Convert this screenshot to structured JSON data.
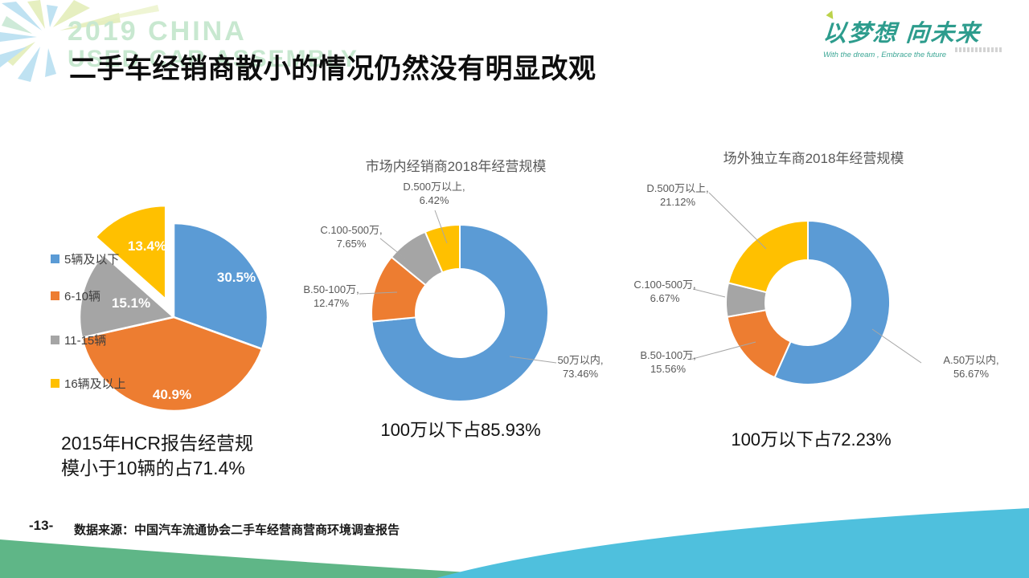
{
  "slide": {
    "title": "二手车经销商散小的情况仍然没有明显改观",
    "note_line1": "2015年HCR报告经营规",
    "note_line2": "模小于10辆的占71.4%",
    "page_number": "-13-",
    "source": "数据来源：中国汽车流通协会二手车经营商营商环境调查报告"
  },
  "branding": {
    "watermark_line1": "2019 CHINA",
    "watermark_line2": "USED CAR ASSEMBLY",
    "slogan_cn": "以梦想  向未来",
    "slogan_en": "With the dream , Embrace the future"
  },
  "colors": {
    "series_blue": "#5B9BD5",
    "series_orange": "#ED7D31",
    "series_gray": "#A5A5A5",
    "series_yellow": "#FFC000",
    "wave_green": "#5FB687",
    "wave_blue": "#4FC0DD",
    "logo_teal": "#2D9C8D",
    "watermark_mint": "#C8E8D0",
    "label_gray": "#595959"
  },
  "chart_data": [
    {
      "type": "pie",
      "title": "",
      "legend_position": "left",
      "categories": [
        "5辆及以下",
        "6-10辆",
        "11-15辆",
        "16辆及以上"
      ],
      "values": [
        30.5,
        40.9,
        15.1,
        13.4
      ],
      "labels": [
        "30.5%",
        "40.9%",
        "15.1%",
        "13.4%"
      ],
      "colors": [
        "#5B9BD5",
        "#ED7D31",
        "#A5A5A5",
        "#FFC000"
      ],
      "exploded_index": 3,
      "note": "2015年HCR报告经营规模小于10辆的占71.4%"
    },
    {
      "type": "pie",
      "subtype": "donut",
      "title": "市场内经销商2018年经营规模",
      "categories": [
        "50万以内",
        "B.50-100万",
        "C.100-500万",
        "D.500万以上"
      ],
      "values": [
        73.46,
        12.47,
        7.65,
        6.42
      ],
      "colors": [
        "#5B9BD5",
        "#ED7D31",
        "#A5A5A5",
        "#FFC000"
      ],
      "callouts": [
        {
          "name": "50万以内,",
          "value": "73.46%"
        },
        {
          "name": "B.50-100万,",
          "value": "12.47%"
        },
        {
          "name": "C.100-500万,",
          "value": "7.65%"
        },
        {
          "name": "D.500万以上,",
          "value": "6.42%"
        }
      ],
      "caption": "100万以下占85.93%"
    },
    {
      "type": "pie",
      "subtype": "donut",
      "title": "场外独立车商2018年经营规模",
      "categories": [
        "A.50万以内",
        "B.50-100万",
        "C.100-500万",
        "D.500万以上"
      ],
      "values": [
        56.67,
        15.56,
        6.67,
        21.12
      ],
      "colors": [
        "#5B9BD5",
        "#ED7D31",
        "#A5A5A5",
        "#FFC000"
      ],
      "callouts": [
        {
          "name": "A.50万以内,",
          "value": "56.67%"
        },
        {
          "name": "B.50-100万,",
          "value": "15.56%"
        },
        {
          "name": "C.100-500万,",
          "value": "6.67%"
        },
        {
          "name": "D.500万以上,",
          "value": "21.12%"
        }
      ],
      "caption": "100万以下占72.23%"
    }
  ]
}
